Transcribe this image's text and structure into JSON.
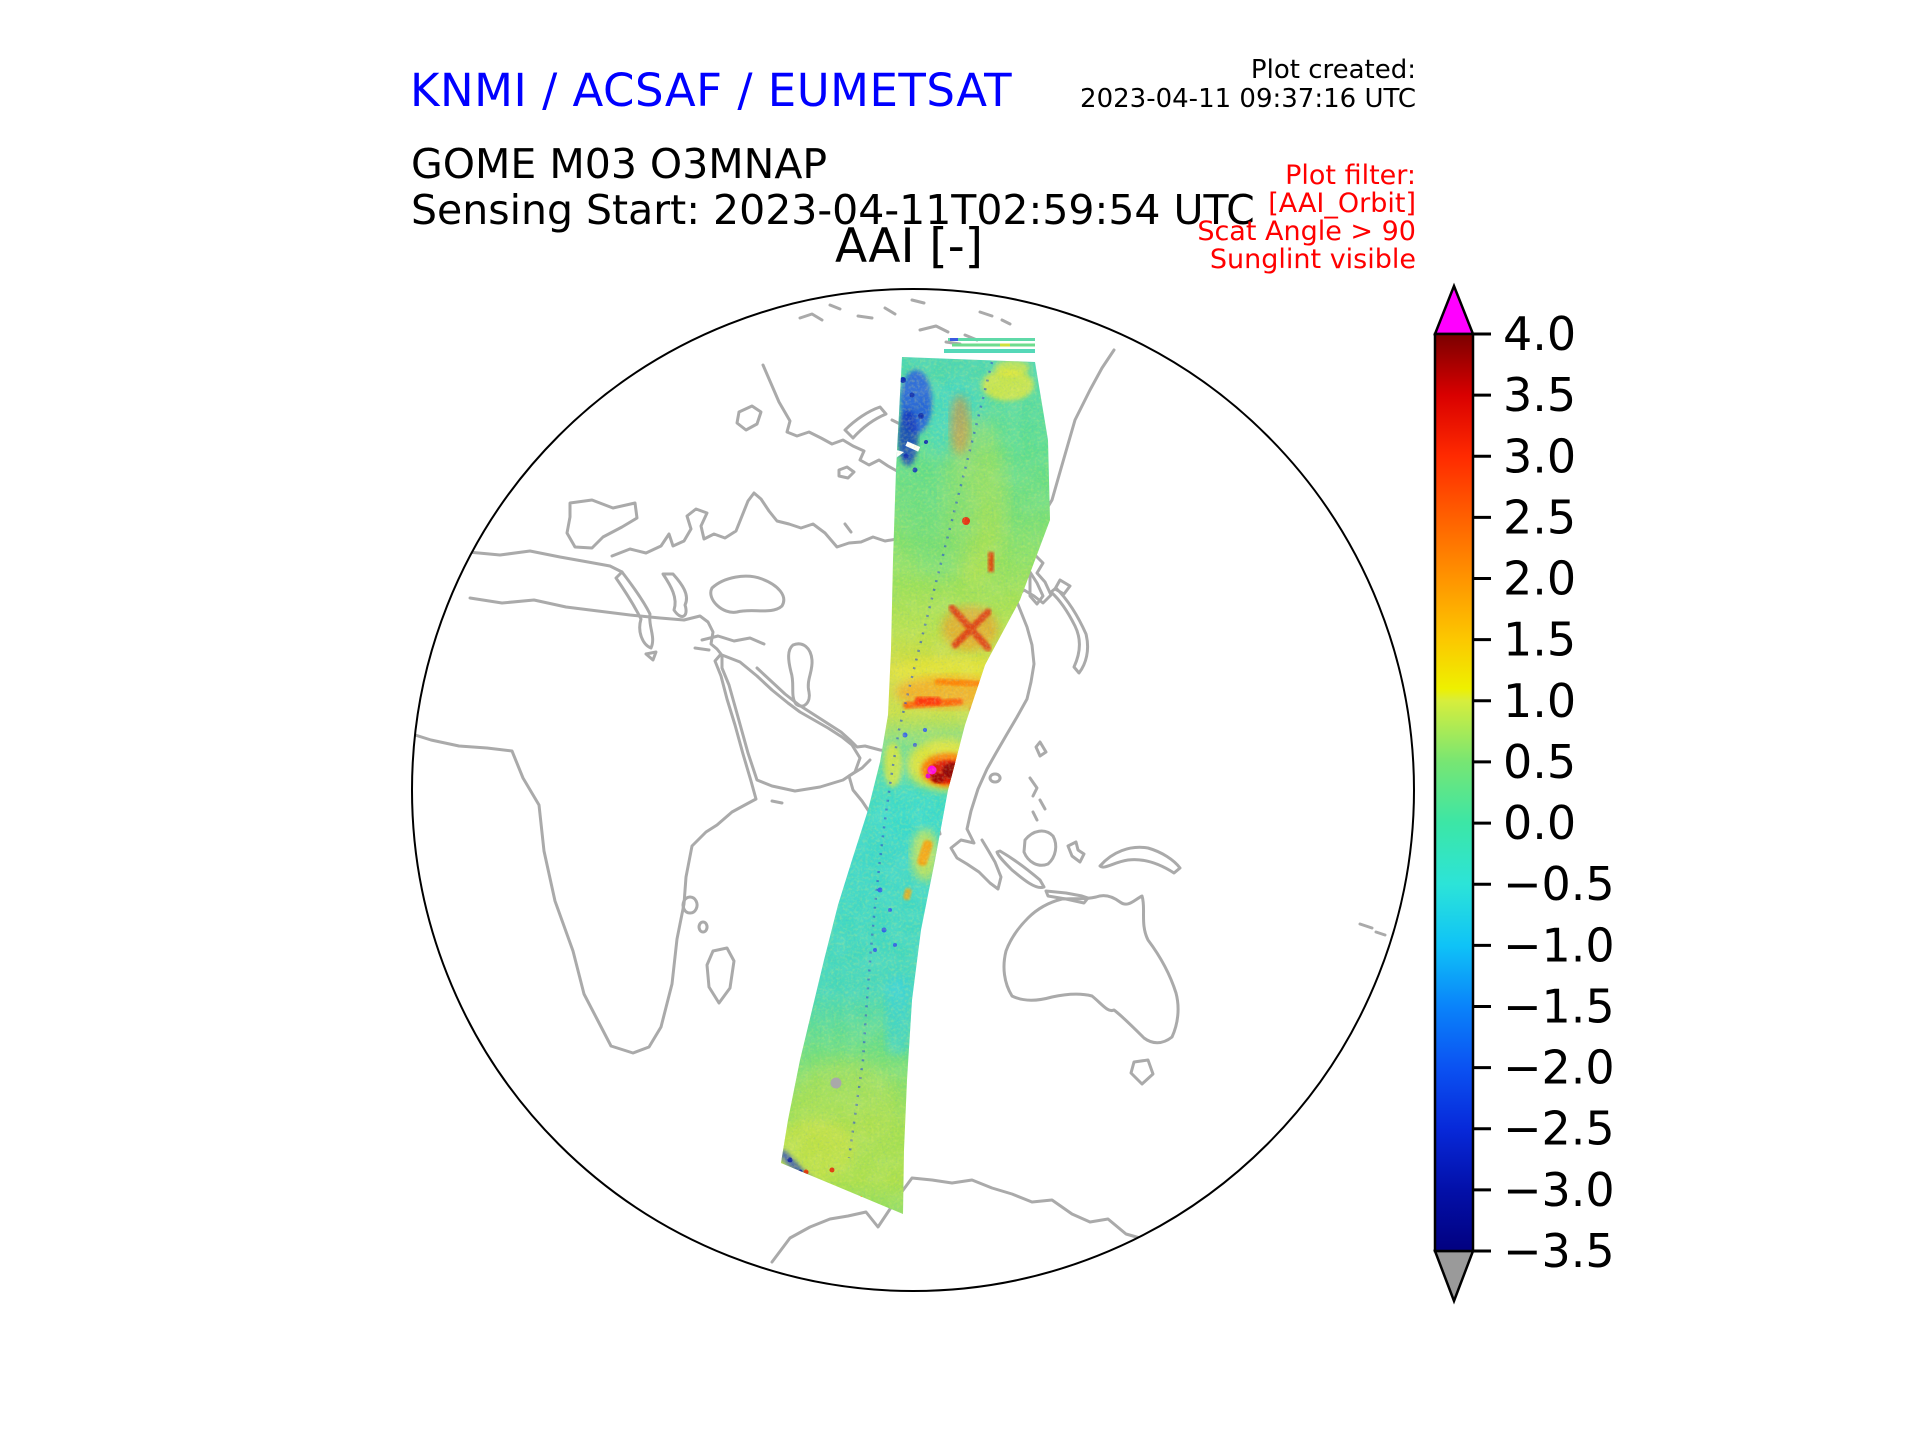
{
  "header": {
    "brand": "KNMI / ACSAF / EUMETSAT",
    "created_label": "Plot created:",
    "created_time": "2023-04-11 09:37:16 UTC"
  },
  "product": {
    "name": "GOME M03 O3MNAP",
    "sensing_start": "Sensing Start: 2023-04-11T02:59:54 UTC"
  },
  "filter_note": {
    "lines": [
      "Plot filter:",
      "[AAI_Orbit]",
      "Scat Angle > 90",
      "Sunglint visible"
    ]
  },
  "colors": {
    "brand_blue": "#0000ff",
    "filter_red": "#ff0000",
    "coastline_gray": "#aaaaaa",
    "globe_outline": "#000000"
  },
  "chart_data": {
    "type": "heatmap",
    "title": "AAI [-]",
    "projection": "orthographic globe, gray coastlines, white ocean/land",
    "description": "Single GOME-2 Metop-B (M03) orbit swath of Absorbing Aerosol Index plotted over the globe from the Arctic (top) through Central Asia, India and the Indian Ocean towards Antarctica (bottom). Swath is mostly teal/green (AAI ~0), with yellow-orange bands over Central Asia, a dark-red/magenta aerosol plume (AAI > 3.5) near Myanmar/Bay of Bengal, blue patches (negative AAI) at the northern swath edge and at the southern swath end.",
    "grid": false,
    "legend_position": "right colorbar",
    "colorbar": {
      "range": [
        -3.5,
        4.0
      ],
      "ticks": [
        4.0,
        3.5,
        3.0,
        2.5,
        2.0,
        1.5,
        1.0,
        0.5,
        0.0,
        -0.5,
        -1.0,
        -1.5,
        -2.0,
        -2.5,
        -3.0,
        -3.5
      ],
      "over_color": "#ff00ff",
      "under_color": "#9a9a9a",
      "stops": [
        {
          "v": 4.0,
          "c": "#7a0000"
        },
        {
          "v": 3.5,
          "c": "#d90000"
        },
        {
          "v": 3.0,
          "c": "#ff2a00"
        },
        {
          "v": 2.5,
          "c": "#ff6000"
        },
        {
          "v": 2.0,
          "c": "#ff9400"
        },
        {
          "v": 1.5,
          "c": "#fcc800"
        },
        {
          "v": 1.1,
          "c": "#eef000"
        },
        {
          "v": 1.0,
          "c": "#d7ee3c"
        },
        {
          "v": 0.5,
          "c": "#77e673"
        },
        {
          "v": 0.0,
          "c": "#3ce6a6"
        },
        {
          "v": -0.5,
          "c": "#2ce4d8"
        },
        {
          "v": -1.0,
          "c": "#0fc3f7"
        },
        {
          "v": -1.5,
          "c": "#0a83fa"
        },
        {
          "v": -2.0,
          "c": "#0b52f2"
        },
        {
          "v": -2.5,
          "c": "#0729d9"
        },
        {
          "v": -3.0,
          "c": "#0310a9"
        },
        {
          "v": -3.5,
          "c": "#020180"
        }
      ]
    },
    "swath": {
      "gradient": [
        {
          "at": 0.0,
          "c": "#49d6b8"
        },
        {
          "at": 0.05,
          "c": "#54dba2"
        },
        {
          "at": 0.11,
          "c": "#5dde92"
        },
        {
          "at": 0.18,
          "c": "#72df7c"
        },
        {
          "at": 0.25,
          "c": "#90e162"
        },
        {
          "at": 0.32,
          "c": "#b3e14e"
        },
        {
          "at": 0.37,
          "c": "#d4dc40"
        },
        {
          "at": 0.42,
          "c": "#c8e04c"
        },
        {
          "at": 0.46,
          "c": "#78df90"
        },
        {
          "at": 0.51,
          "c": "#46dcc0"
        },
        {
          "at": 0.58,
          "c": "#3fd9c9"
        },
        {
          "at": 0.66,
          "c": "#41d9c3"
        },
        {
          "at": 0.74,
          "c": "#47d8ba"
        },
        {
          "at": 0.82,
          "c": "#74df7b"
        },
        {
          "at": 0.9,
          "c": "#a2e054"
        },
        {
          "at": 0.96,
          "c": "#ace04d"
        },
        {
          "at": 1.0,
          "c": "#8ede62"
        }
      ],
      "features": [
        "dark blue patch at northern swath edge (AAI < -2)",
        "red X-shaped feature over Central Asia (AAI ~3)",
        "orange-red horizontal streaks band (AAI ~2.5)",
        "dark red plume with magenta over-range spot near Myanmar (AAI > 4)",
        "orange streak over Sumatra region",
        "blue diagonal streak at southern swath end",
        "dotted blue ground-track line along swath center"
      ]
    }
  }
}
